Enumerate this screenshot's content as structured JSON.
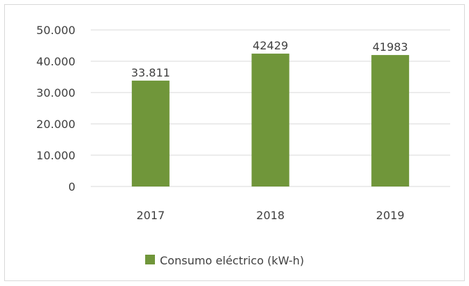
{
  "chart_data": {
    "type": "bar",
    "categories": [
      "2017",
      "2018",
      "2019"
    ],
    "series": [
      {
        "name": "Consumo eléctrico (kW-h)",
        "values": [
          33811,
          42429,
          41983
        ],
        "data_labels": [
          "33.811",
          "42429",
          "41983"
        ],
        "color": "#70963a"
      }
    ],
    "y_ticks": [
      0,
      10000,
      20000,
      30000,
      40000,
      50000
    ],
    "y_tick_labels": [
      "0",
      "10.000",
      "20.000",
      "30.000",
      "40.000",
      "50.000"
    ],
    "ylim": [
      0,
      50000
    ],
    "grid": true,
    "legend_position": "bottom"
  }
}
